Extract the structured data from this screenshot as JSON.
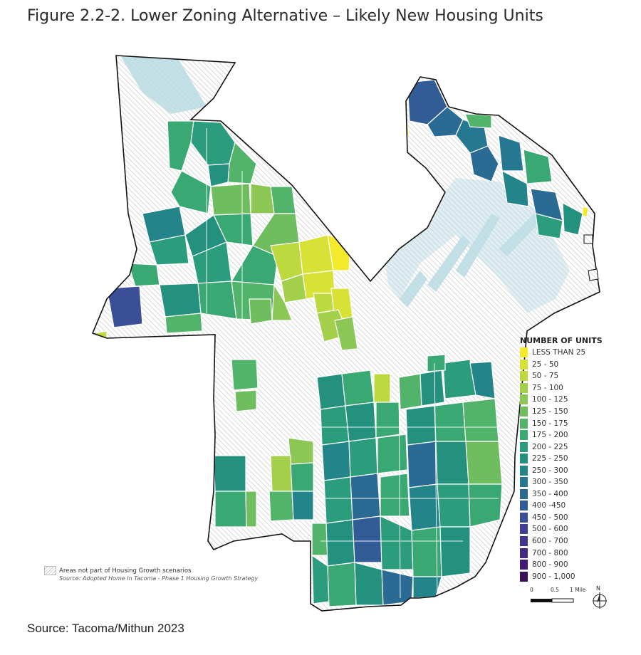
{
  "figure": {
    "title": "Figure 2.2-2. Lower Zoning Alternative – Likely New Housing Units",
    "source": "Source: Tacoma/Mithun 2023"
  },
  "legend": {
    "title": "NUMBER OF UNITS",
    "items": [
      {
        "label": "LESS THAN 25",
        "color": "#f2ea2a"
      },
      {
        "label": "25 - 50",
        "color": "#d8e236"
      },
      {
        "label": "50 - 75",
        "color": "#bcd93f"
      },
      {
        "label": "75 - 100",
        "color": "#a3cf4a"
      },
      {
        "label": "100 - 125",
        "color": "#8cc655"
      },
      {
        "label": "125 - 150",
        "color": "#6fbd5e"
      },
      {
        "label": "150 - 175",
        "color": "#52b36a"
      },
      {
        "label": "175 - 200",
        "color": "#3aa873"
      },
      {
        "label": "200 - 225",
        "color": "#2c9d7c"
      },
      {
        "label": "225 - 250",
        "color": "#24917f"
      },
      {
        "label": "250 - 300",
        "color": "#23858a"
      },
      {
        "label": "300 - 350",
        "color": "#267791"
      },
      {
        "label": "350 - 400",
        "color": "#2b6a93"
      },
      {
        "label": "400 -450",
        "color": "#315c96"
      },
      {
        "label": "450 - 500",
        "color": "#3b4e98"
      },
      {
        "label": "500 - 600",
        "color": "#433f96"
      },
      {
        "label": "600 - 700",
        "color": "#46348e"
      },
      {
        "label": "700 - 800",
        "color": "#452882"
      },
      {
        "label": "800 - 900",
        "color": "#421c72"
      },
      {
        "label": "900 - 1,000",
        "color": "#3b0f5c"
      }
    ]
  },
  "notes": {
    "excluded_label": "Areas not part of Housing Growth scenarios",
    "data_source": "Source: Adopted Home In Tacoma - Phase 1 Housing Growth Strategy"
  },
  "scale_bar": {
    "labels": [
      "0",
      "0.5",
      "1 Mile"
    ]
  },
  "north_arrow": {
    "label": "N"
  },
  "colors": {
    "hatch_line": "#c7c7c7",
    "water": "#b9dbe3",
    "boundary": "#111111",
    "parcel_outline": "#ffffff"
  }
}
